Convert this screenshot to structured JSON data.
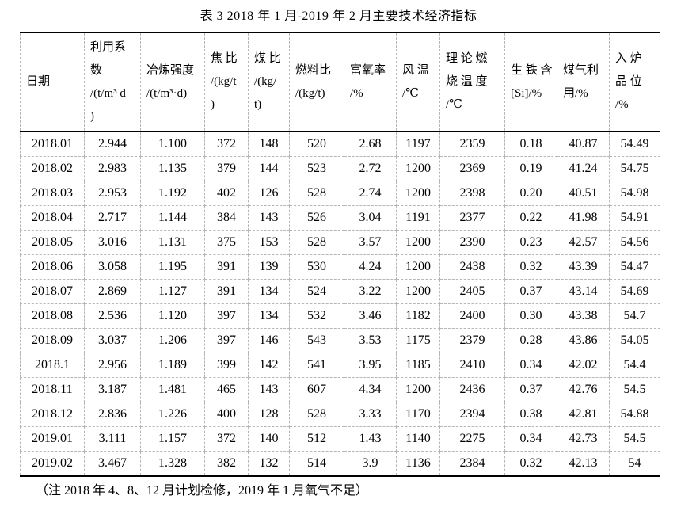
{
  "title": "表 3  2018 年 1 月-2019 年 2 月主要技术经济指标",
  "note": "（注 2018 年 4、8、12 月计划检修，2019 年 1 月氧气不足）",
  "table": {
    "columns": [
      {
        "id": "date",
        "label": "日期"
      },
      {
        "id": "utilization-coefficient",
        "label": "利用系\n数\n/(t/m³ d\n)"
      },
      {
        "id": "smelting-intensity",
        "label": "冶炼强度\n/(t/m³·d)"
      },
      {
        "id": "coke-ratio",
        "label": "焦 比\n/(kg/t\n)"
      },
      {
        "id": "coal-ratio",
        "label": "煤 比\n/(kg/\nt)"
      },
      {
        "id": "fuel-ratio",
        "label": "燃料比\n/(kg/t)"
      },
      {
        "id": "oxygen-enrichment-rate",
        "label": "富氧率\n/%"
      },
      {
        "id": "blast-temperature",
        "label": "风 温\n/℃"
      },
      {
        "id": "theoretical-combustion-temperature",
        "label": "理 论 燃\n烧 温 度\n/℃"
      },
      {
        "id": "pig-iron-si-content",
        "label": "生 铁 含\n[Si]/%"
      },
      {
        "id": "gas-utilization",
        "label": "煤气利\n用/%"
      },
      {
        "id": "charged-ore-grade",
        "label": "入 炉\n品 位\n/%"
      }
    ],
    "rows": [
      [
        "2018.01",
        "2.944",
        "1.100",
        "372",
        "148",
        "520",
        "2.68",
        "1197",
        "2359",
        "0.18",
        "40.87",
        "54.49"
      ],
      [
        "2018.02",
        "2.983",
        "1.135",
        "379",
        "144",
        "523",
        "2.72",
        "1200",
        "2369",
        "0.19",
        "41.24",
        "54.75"
      ],
      [
        "2018.03",
        "2.953",
        "1.192",
        "402",
        "126",
        "528",
        "2.74",
        "1200",
        "2398",
        "0.20",
        "40.51",
        "54.98"
      ],
      [
        "2018.04",
        "2.717",
        "1.144",
        "384",
        "143",
        "526",
        "3.04",
        "1191",
        "2377",
        "0.22",
        "41.98",
        "54.91"
      ],
      [
        "2018.05",
        "3.016",
        "1.131",
        "375",
        "153",
        "528",
        "3.57",
        "1200",
        "2390",
        "0.23",
        "42.57",
        "54.56"
      ],
      [
        "2018.06",
        "3.058",
        "1.195",
        "391",
        "139",
        "530",
        "4.24",
        "1200",
        "2438",
        "0.32",
        "43.39",
        "54.47"
      ],
      [
        "2018.07",
        "2.869",
        "1.127",
        "391",
        "134",
        "524",
        "3.22",
        "1200",
        "2405",
        "0.37",
        "43.14",
        "54.69"
      ],
      [
        "2018.08",
        "2.536",
        "1.120",
        "397",
        "134",
        "532",
        "3.46",
        "1182",
        "2400",
        "0.30",
        "43.38",
        "54.7"
      ],
      [
        "2018.09",
        "3.037",
        "1.206",
        "397",
        "146",
        "543",
        "3.53",
        "1175",
        "2379",
        "0.28",
        "43.86",
        "54.05"
      ],
      [
        "2018.1",
        "2.956",
        "1.189",
        "399",
        "142",
        "541",
        "3.95",
        "1185",
        "2410",
        "0.34",
        "42.02",
        "54.4"
      ],
      [
        "2018.11",
        "3.187",
        "1.481",
        "465",
        "143",
        "607",
        "4.34",
        "1200",
        "2436",
        "0.37",
        "42.76",
        "54.5"
      ],
      [
        "2018.12",
        "2.836",
        "1.226",
        "400",
        "128",
        "528",
        "3.33",
        "1170",
        "2394",
        "0.38",
        "42.81",
        "54.88"
      ],
      [
        "2019.01",
        "3.111",
        "1.157",
        "372",
        "140",
        "512",
        "1.43",
        "1140",
        "2275",
        "0.34",
        "42.73",
        "54.5"
      ],
      [
        "2019.02",
        "3.467",
        "1.328",
        "382",
        "132",
        "514",
        "3.9",
        "1136",
        "2384",
        "0.32",
        "42.13",
        "54"
      ]
    ]
  },
  "colors": {
    "text": "#000000",
    "solid_rule": "#000000",
    "dashed_grid": "#b6b6b6",
    "background": "#ffffff"
  }
}
